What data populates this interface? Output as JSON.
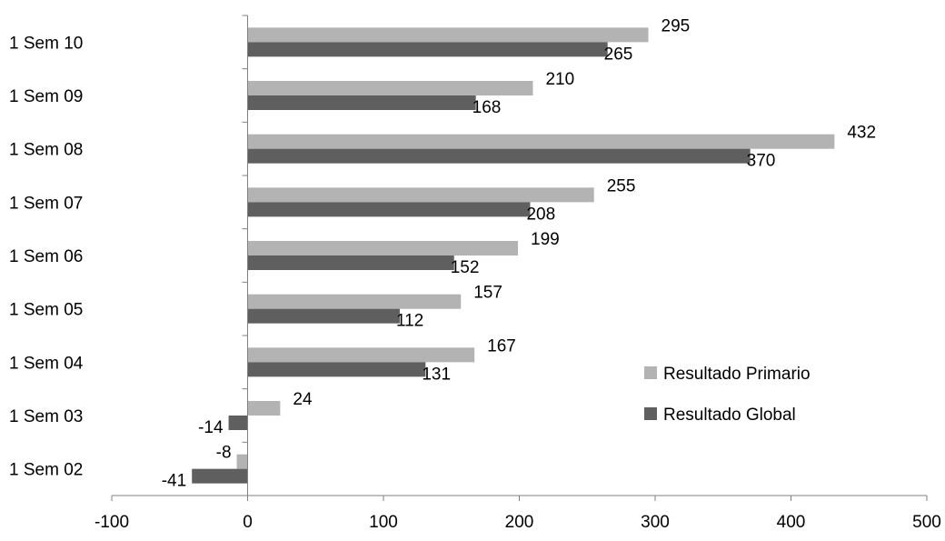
{
  "chart_data": {
    "type": "bar",
    "orientation": "horizontal",
    "categories": [
      "1 Sem 02",
      "1 Sem 03",
      "1 Sem 04",
      "1 Sem 05",
      "1 Sem 06",
      "1 Sem 07",
      "1 Sem 08",
      "1 Sem 09",
      "1 Sem 10"
    ],
    "series": [
      {
        "name": "Resultado Primario",
        "color": "#b3b3b3",
        "values": [
          -8,
          24,
          167,
          157,
          199,
          255,
          432,
          210,
          295
        ]
      },
      {
        "name": "Resultado Global",
        "color": "#5f5f5f",
        "values": [
          -41,
          -14,
          131,
          112,
          152,
          208,
          370,
          168,
          265
        ]
      }
    ],
    "title": "",
    "xlabel": "",
    "ylabel": "",
    "xlim": [
      -100,
      500
    ],
    "x_ticks": [
      "-100",
      "0",
      "100",
      "200",
      "300",
      "400",
      "500"
    ],
    "grid": false,
    "legend": "right"
  }
}
